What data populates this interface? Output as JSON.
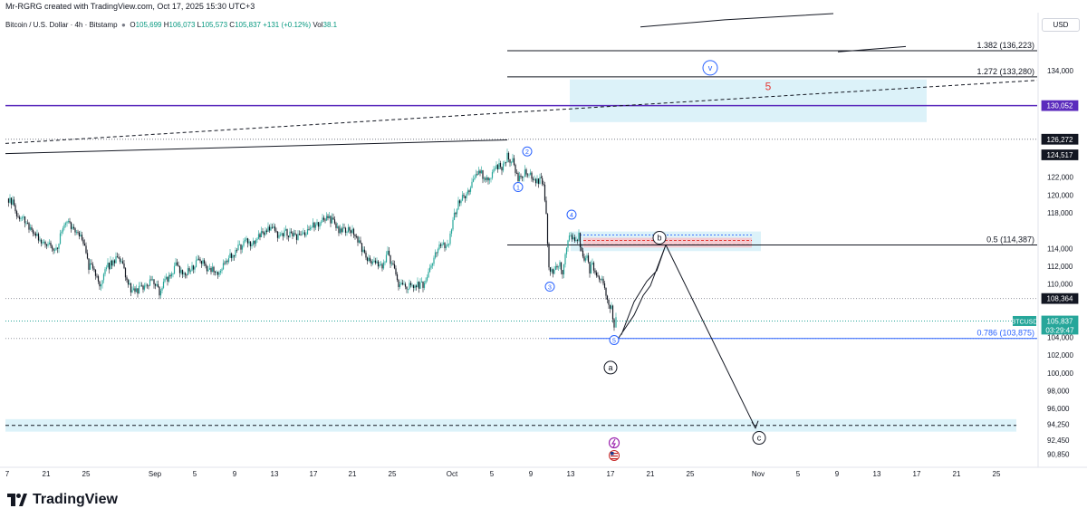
{
  "header": {
    "created_by": "Mr-RGRG created with TradingView.com, Oct 17, 2025 15:30 UTC+3"
  },
  "symbol": {
    "name": "Bitcoin / U.S. Dollar · 4h · Bitstamp",
    "open_label": "O",
    "open": "105,699",
    "high_label": "H",
    "high": "106,073",
    "low_label": "L",
    "low": "105,573",
    "close_label": "C",
    "close": "105,837",
    "change": "+131 (+0.12%)",
    "vol_label": "Vol",
    "vol": "38.1"
  },
  "footer": {
    "logo": "TradingView"
  },
  "colors": {
    "up": "#26a69a",
    "down": "#131722",
    "purple": "#5b2bbd",
    "zone": "#d8f1f8",
    "red_zone": "#f6c6cc",
    "blue": "#2962ff",
    "label_dark": "#131722",
    "label_teal": "#26a69a"
  },
  "chart_data": {
    "type": "candlestick",
    "symbol": "BTCUSD",
    "timeframe": "4h",
    "currency": "USD",
    "ylim": [
      89800,
      140500
    ],
    "y_ticks": [
      134000,
      122000,
      120000,
      118000,
      114000,
      112000,
      110000,
      104000,
      102000,
      100000,
      98000,
      96000,
      94250,
      92450,
      90850
    ],
    "x_ticks": [
      {
        "label": "7",
        "x": 8
      },
      {
        "label": "21",
        "x": 51
      },
      {
        "label": "25",
        "x": 95
      },
      {
        "label": "Sep",
        "x": 171
      },
      {
        "label": "5",
        "x": 215
      },
      {
        "label": "9",
        "x": 259
      },
      {
        "label": "13",
        "x": 303
      },
      {
        "label": "17",
        "x": 346
      },
      {
        "label": "21",
        "x": 389
      },
      {
        "label": "25",
        "x": 433
      },
      {
        "label": "Oct",
        "x": 499
      },
      {
        "label": "5",
        "x": 543
      },
      {
        "label": "9",
        "x": 586
      },
      {
        "label": "13",
        "x": 630
      },
      {
        "label": "17",
        "x": 674
      },
      {
        "label": "21",
        "x": 718
      },
      {
        "label": "25",
        "x": 762
      },
      {
        "label": "Nov",
        "x": 837
      },
      {
        "label": "5",
        "x": 881
      },
      {
        "label": "9",
        "x": 924
      },
      {
        "label": "13",
        "x": 968
      },
      {
        "label": "17",
        "x": 1012
      },
      {
        "label": "21",
        "x": 1056
      },
      {
        "label": "25",
        "x": 1100
      }
    ],
    "price_path": [
      [
        8,
        119600
      ],
      [
        14,
        119200
      ],
      [
        20,
        117300
      ],
      [
        26,
        117600
      ],
      [
        32,
        116300
      ],
      [
        38,
        115700
      ],
      [
        44,
        114800
      ],
      [
        50,
        114600
      ],
      [
        56,
        114300
      ],
      [
        62,
        113800
      ],
      [
        68,
        116000
      ],
      [
        74,
        117300
      ],
      [
        80,
        116200
      ],
      [
        86,
        115800
      ],
      [
        92,
        114500
      ],
      [
        98,
        112000
      ],
      [
        104,
        111600
      ],
      [
        110,
        110000
      ],
      [
        116,
        111700
      ],
      [
        122,
        112200
      ],
      [
        128,
        112700
      ],
      [
        134,
        112500
      ],
      [
        140,
        110500
      ],
      [
        146,
        109000
      ],
      [
        152,
        109300
      ],
      [
        158,
        109600
      ],
      [
        164,
        110100
      ],
      [
        170,
        110400
      ],
      [
        176,
        109000
      ],
      [
        182,
        110400
      ],
      [
        188,
        110900
      ],
      [
        194,
        112000
      ],
      [
        200,
        111500
      ],
      [
        206,
        111200
      ],
      [
        212,
        111800
      ],
      [
        218,
        112500
      ],
      [
        224,
        112700
      ],
      [
        230,
        111300
      ],
      [
        236,
        111600
      ],
      [
        242,
        111300
      ],
      [
        248,
        112300
      ],
      [
        254,
        113000
      ],
      [
        260,
        113700
      ],
      [
        266,
        114300
      ],
      [
        272,
        115100
      ],
      [
        278,
        114500
      ],
      [
        284,
        115200
      ],
      [
        290,
        115600
      ],
      [
        296,
        116000
      ],
      [
        302,
        116100
      ],
      [
        308,
        115300
      ],
      [
        314,
        115900
      ],
      [
        320,
        115600
      ],
      [
        326,
        115400
      ],
      [
        332,
        115300
      ],
      [
        338,
        115500
      ],
      [
        344,
        116400
      ],
      [
        350,
        116800
      ],
      [
        356,
        117100
      ],
      [
        362,
        117400
      ],
      [
        368,
        116900
      ],
      [
        374,
        115900
      ],
      [
        380,
        115900
      ],
      [
        386,
        116200
      ],
      [
        392,
        115600
      ],
      [
        398,
        114300
      ],
      [
        404,
        113000
      ],
      [
        410,
        112400
      ],
      [
        416,
        112200
      ],
      [
        422,
        111900
      ],
      [
        428,
        113300
      ],
      [
        434,
        112000
      ],
      [
        440,
        109900
      ],
      [
        446,
        109700
      ],
      [
        452,
        109900
      ],
      [
        458,
        109900
      ],
      [
        464,
        109800
      ],
      [
        470,
        110200
      ],
      [
        476,
        112000
      ],
      [
        482,
        113900
      ],
      [
        488,
        114500
      ],
      [
        494,
        114100
      ],
      [
        500,
        117100
      ],
      [
        506,
        119100
      ],
      [
        512,
        119900
      ],
      [
        518,
        120600
      ],
      [
        524,
        121700
      ],
      [
        530,
        122600
      ],
      [
        536,
        121800
      ],
      [
        542,
        122300
      ],
      [
        548,
        123100
      ],
      [
        554,
        123200
      ],
      [
        560,
        124300
      ],
      [
        566,
        123700
      ],
      [
        572,
        121700
      ],
      [
        578,
        122400
      ],
      [
        584,
        122500
      ],
      [
        590,
        121500
      ],
      [
        596,
        121700
      ],
      [
        600,
        121000
      ],
      [
        603,
        117500
      ],
      [
        606,
        112000
      ],
      [
        609,
        111600
      ],
      [
        612,
        111300
      ],
      [
        615,
        111900
      ],
      [
        618,
        112500
      ],
      [
        621,
        111500
      ],
      [
        624,
        113500
      ],
      [
        627,
        115200
      ],
      [
        630,
        115300
      ],
      [
        633,
        114800
      ],
      [
        636,
        114700
      ],
      [
        639,
        115500
      ],
      [
        642,
        113500
      ],
      [
        645,
        112500
      ],
      [
        648,
        113200
      ],
      [
        651,
        111600
      ],
      [
        654,
        112000
      ],
      [
        657,
        111300
      ],
      [
        660,
        110600
      ],
      [
        663,
        110800
      ],
      [
        666,
        110000
      ],
      [
        669,
        109000
      ],
      [
        672,
        108000
      ],
      [
        675,
        107300
      ],
      [
        678,
        105300
      ],
      [
        680,
        105837
      ]
    ],
    "horizontal_lines": [
      {
        "price": 130052,
        "label": "130,052",
        "color": "#5b2bbd",
        "style": "solid",
        "x0": 6,
        "x1": 1145
      },
      {
        "price": 126272,
        "label": "126,272",
        "color": "#787b86",
        "style": "dotted",
        "x0": 6,
        "x1": 1145
      },
      {
        "price": 124517,
        "label": "124,517",
        "color": "#131722",
        "style": "none",
        "x0": 6,
        "x1": 6
      },
      {
        "price": 108364,
        "label": "108,364",
        "color": "#9598a1",
        "style": "dotted",
        "x0": 6,
        "x1": 1145
      },
      {
        "price": 105837,
        "label": "105,837",
        "color": "#26a69a",
        "style": "dotted",
        "x0": 6,
        "x1": 1145
      },
      {
        "price": 103875,
        "label": "",
        "color": "#9598a1",
        "style": "dotted",
        "x0": 6,
        "x1": 1145
      }
    ],
    "fib_levels": [
      {
        "text": "1.382 (136,223)",
        "price": 136223,
        "x0": 560,
        "x1": 1145,
        "color": "#131722"
      },
      {
        "text": "1.272 (133,280)",
        "price": 133280,
        "x0": 560,
        "x1": 1145,
        "color": "#131722"
      },
      {
        "text": "0.5 (114,387)",
        "price": 114387,
        "x0": 560,
        "x1": 1145,
        "color": "#131722"
      },
      {
        "text": "0.786 (103,875)",
        "price": 103875,
        "x0": 606,
        "x1": 1145,
        "color": "#2962ff"
      }
    ],
    "zones": [
      {
        "name": "target-zone-upper",
        "p_top": 133000,
        "p_bot": 128200,
        "x0": 629,
        "x1": 1023,
        "color": "#d8f1f8"
      },
      {
        "name": "resistance-zone",
        "p_top": 115900,
        "p_bot": 113700,
        "x0": 630,
        "x1": 840,
        "color": "#d8f1f8"
      },
      {
        "name": "resistance-red-zone",
        "p_top": 115200,
        "p_bot": 114100,
        "x0": 644,
        "x1": 830,
        "color": "#f6c6cc"
      },
      {
        "name": "target-zone-lower",
        "p_top": 94800,
        "p_bot": 93400,
        "x0": 6,
        "x1": 1122,
        "color": "#d8f1f8"
      }
    ],
    "trendlines": [
      {
        "name": "upper-trendline",
        "points": [
          [
            6,
            124650
          ],
          [
            560,
            126200
          ]
        ],
        "color": "#131722",
        "style": "solid"
      },
      {
        "name": "dashed-trendline",
        "points": [
          [
            6,
            125800
          ],
          [
            1145,
            132900
          ]
        ],
        "color": "#131722",
        "style": "dashed"
      },
      {
        "name": "top-curve",
        "points": [
          [
            707,
            138900
          ],
          [
            800,
            139700
          ],
          [
            920,
            140400
          ]
        ],
        "color": "#131722",
        "style": "solid"
      },
      {
        "name": "top-curve-2",
        "points": [
          [
            925,
            136100
          ],
          [
            1000,
            136700
          ]
        ],
        "color": "#131722",
        "style": "solid"
      }
    ],
    "projection_path": [
      [
        686,
        104300
      ],
      [
        700,
        108000
      ],
      [
        714,
        110300
      ],
      [
        725,
        111500
      ],
      [
        735,
        114400
      ],
      [
        718,
        109800
      ],
      [
        710,
        108700
      ],
      [
        700,
        106500
      ],
      [
        682,
        103800
      ]
    ],
    "projection_down": [
      [
        735,
        114400
      ],
      [
        834,
        93800
      ]
    ],
    "wave_labels": [
      {
        "text": "1",
        "x": 572,
        "price": 120900,
        "style": "circle-blue"
      },
      {
        "text": "2",
        "x": 582,
        "price": 124900,
        "style": "circle-blue"
      },
      {
        "text": "3",
        "x": 607,
        "price": 109700,
        "style": "circle-blue"
      },
      {
        "text": "4",
        "x": 631,
        "price": 117800,
        "style": "circle-blue"
      },
      {
        "text": "5",
        "x": 678,
        "price": 103700,
        "style": "circle-blue"
      },
      {
        "text": "v",
        "x": 784,
        "price": 134300,
        "style": "circle-blue-large"
      },
      {
        "text": "5",
        "x": 848,
        "price": 132200,
        "style": "text-red"
      },
      {
        "text": "b",
        "x": 728,
        "price": 115200,
        "style": "circle-dark"
      },
      {
        "text": "a",
        "x": 674,
        "price": 100600,
        "style": "circle-dark"
      },
      {
        "text": "c",
        "x": 838,
        "price": 92700,
        "style": "circle-dark"
      }
    ],
    "price_tag": {
      "symbol": "BTCUSD",
      "price": "105,837",
      "countdown": "03:29:47"
    }
  }
}
